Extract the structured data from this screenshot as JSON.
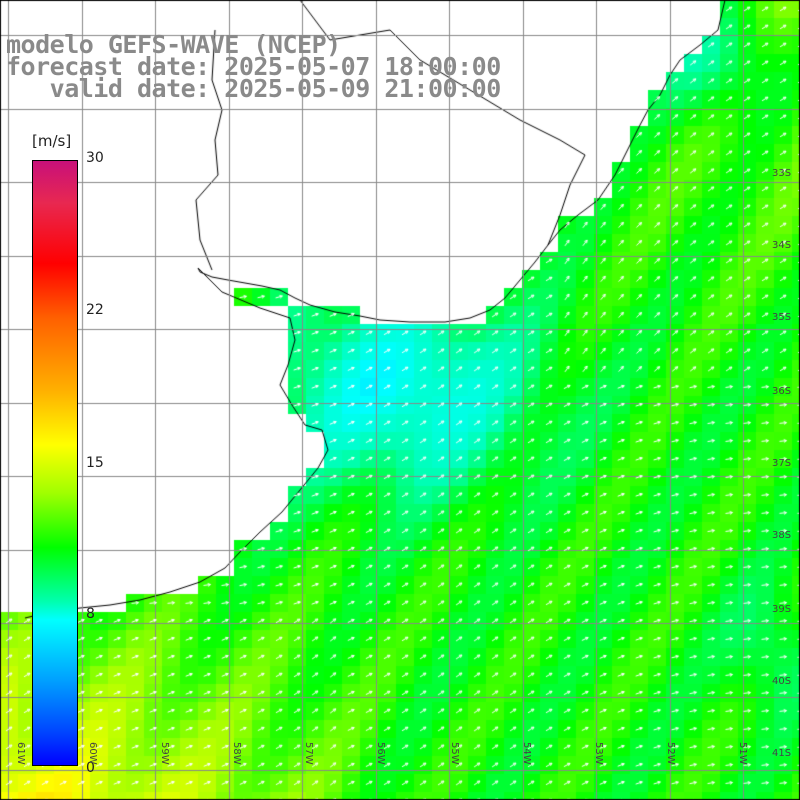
{
  "title": {
    "line1": "modelo GEFS-WAVE (NCEP)",
    "line2": "forecast date: 2025-05-07 18:00:00",
    "line3": "   valid date: 2025-05-09 21:00:00"
  },
  "legend": {
    "units": "[m/s]",
    "ticks": [
      "30",
      "22",
      "15",
      "8",
      "0"
    ],
    "colorscale": [
      "#0000ff",
      "#0040ff",
      "#00a0ff",
      "#00ffff",
      "#00ffb0",
      "#00ff00",
      "#a0ff00",
      "#ffff00",
      "#ffb000",
      "#ff6000",
      "#ff0000",
      "#e82850",
      "#c8107a"
    ]
  },
  "map": {
    "lon_labels": [
      "61W",
      "60W",
      "59W",
      "58W",
      "57W",
      "56W",
      "55W",
      "54W",
      "53W",
      "52W",
      "51W"
    ],
    "lat_labels": [
      "33S",
      "34S",
      "35S",
      "36S",
      "37S",
      "38S",
      "39S",
      "40S",
      "41S"
    ],
    "land_color": "#ffffff",
    "grid_color": "#888888",
    "arrow_color": "#ffffff"
  }
}
